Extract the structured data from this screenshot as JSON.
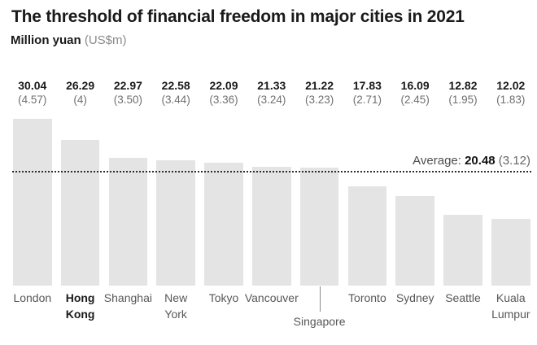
{
  "header": {
    "title": "The threshold of financial freedom in major cities in 2021",
    "subtitle_bold": "Million yuan",
    "subtitle_light": "(US$m)"
  },
  "average": {
    "prefix": "Average: ",
    "value": "20.48",
    "usd": " (3.12)",
    "numeric": 20.48
  },
  "colors": {
    "bar": "#e4e4e4",
    "title_text": "#1a1a1a",
    "secondary_text": "#6f6f6f",
    "city_text": "#575757",
    "average_line": "#2e2e2e",
    "leader_line": "#8a8a8a"
  },
  "chart_data": {
    "type": "bar",
    "title": "The threshold of financial freedom in major cities in 2021",
    "xlabel": "",
    "ylabel": "Million yuan (US$m)",
    "ylim": [
      0,
      30.04
    ],
    "grid": false,
    "legend": false,
    "average": 20.48,
    "average_usd": 3.12,
    "categories": [
      "London",
      "Hong Kong",
      "Shanghai",
      "New York",
      "Tokyo",
      "Vancouver",
      "Singapore",
      "Toronto",
      "Sydney",
      "Seattle",
      "Kuala Lumpur"
    ],
    "series": [
      {
        "name": "Million yuan",
        "values": [
          30.04,
          26.29,
          22.97,
          22.58,
          22.09,
          21.33,
          21.22,
          17.83,
          16.09,
          12.82,
          12.02
        ]
      },
      {
        "name": "US$m",
        "values": [
          4.57,
          4,
          3.5,
          3.44,
          3.36,
          3.24,
          3.23,
          2.71,
          2.45,
          1.95,
          1.83
        ]
      }
    ],
    "bars": [
      {
        "name": "London",
        "lines": [
          "London"
        ],
        "yuan_label": "30.04",
        "usd_label": "(4.57)",
        "value": 30.04,
        "bold": false,
        "leader": false
      },
      {
        "name": "Hong Kong",
        "lines": [
          "Hong",
          "Kong"
        ],
        "yuan_label": "26.29",
        "usd_label": "(4)",
        "value": 26.29,
        "bold": true,
        "leader": false
      },
      {
        "name": "Shanghai",
        "lines": [
          "Shanghai"
        ],
        "yuan_label": "22.97",
        "usd_label": "(3.50)",
        "value": 22.97,
        "bold": false,
        "leader": false
      },
      {
        "name": "New York",
        "lines": [
          "New",
          "York"
        ],
        "yuan_label": "22.58",
        "usd_label": "(3.44)",
        "value": 22.58,
        "bold": false,
        "leader": false
      },
      {
        "name": "Tokyo",
        "lines": [
          "Tokyo"
        ],
        "yuan_label": "22.09",
        "usd_label": "(3.36)",
        "value": 22.09,
        "bold": false,
        "leader": false
      },
      {
        "name": "Vancouver",
        "lines": [
          "Vancouver"
        ],
        "yuan_label": "21.33",
        "usd_label": "(3.24)",
        "value": 21.33,
        "bold": false,
        "leader": false
      },
      {
        "name": "Singapore",
        "lines": [
          "Singapore"
        ],
        "yuan_label": "21.22",
        "usd_label": "(3.23)",
        "value": 21.22,
        "bold": false,
        "leader": true
      },
      {
        "name": "Toronto",
        "lines": [
          "Toronto"
        ],
        "yuan_label": "17.83",
        "usd_label": "(2.71)",
        "value": 17.83,
        "bold": false,
        "leader": false
      },
      {
        "name": "Sydney",
        "lines": [
          "Sydney"
        ],
        "yuan_label": "16.09",
        "usd_label": "(2.45)",
        "value": 16.09,
        "bold": false,
        "leader": false
      },
      {
        "name": "Seattle",
        "lines": [
          "Seattle"
        ],
        "yuan_label": "12.82",
        "usd_label": "(1.95)",
        "value": 12.82,
        "bold": false,
        "leader": false
      },
      {
        "name": "Kuala Lumpur",
        "lines": [
          "Kuala",
          "Lumpur"
        ],
        "yuan_label": "12.02",
        "usd_label": "(1.83)",
        "value": 12.02,
        "bold": false,
        "leader": false
      }
    ]
  }
}
